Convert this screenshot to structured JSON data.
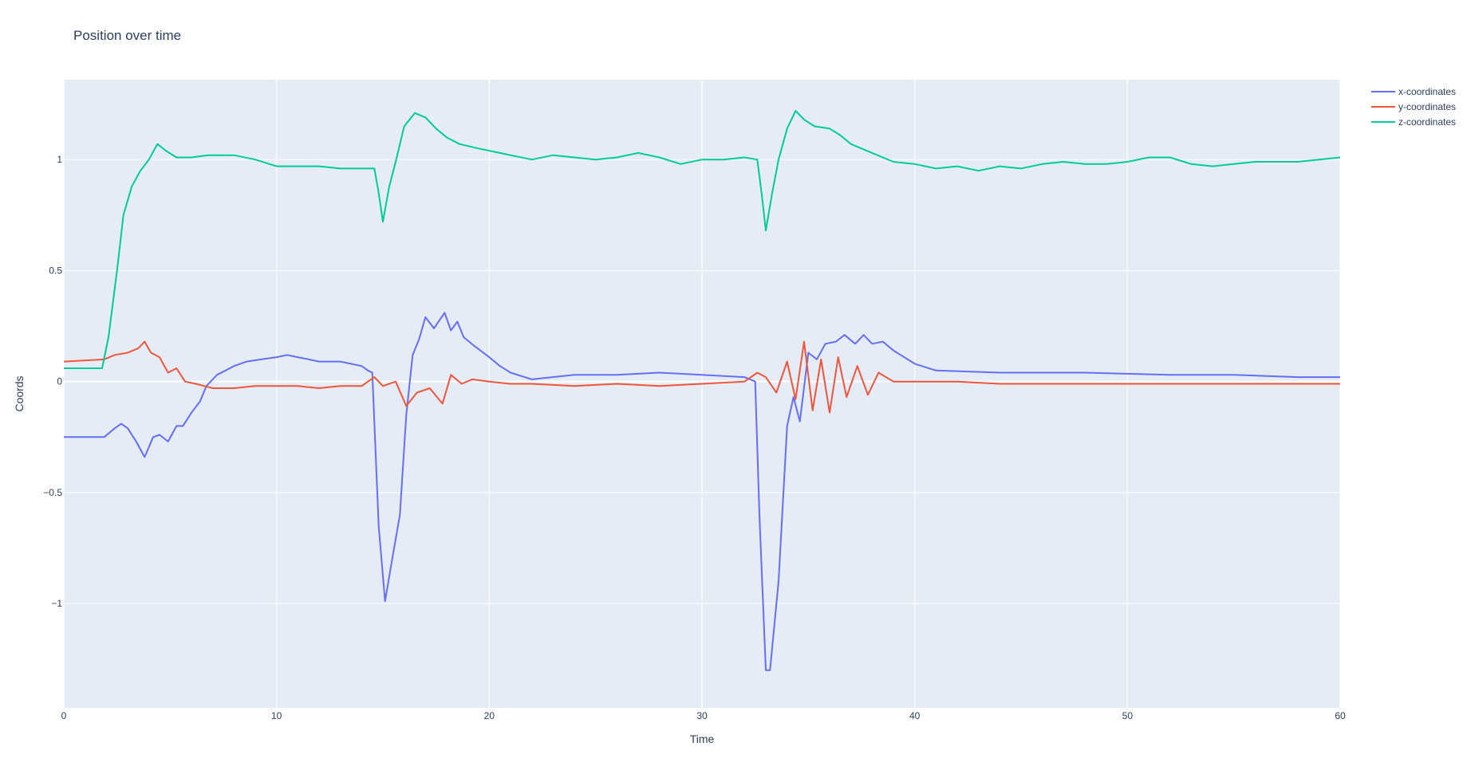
{
  "chart_data": {
    "type": "line",
    "title": "Position over time",
    "xlabel": "Time",
    "ylabel": "Coords",
    "xlim": [
      0,
      60
    ],
    "ylim": [
      -1.47,
      1.36
    ],
    "xticks": [
      0,
      10,
      20,
      30,
      40,
      50,
      60
    ],
    "xtick_labels": [
      "0",
      "10",
      "20",
      "30",
      "40",
      "50",
      "60"
    ],
    "yticks": [
      -1,
      -0.5,
      0,
      0.5,
      1
    ],
    "ytick_labels": [
      "−1",
      "−0.5",
      "0",
      "0.5",
      "1"
    ],
    "grid": true,
    "legend_position": "top-right",
    "plot_bg": "#e5ecf6",
    "series": [
      {
        "name": "x-coordinates",
        "color": "#636efa",
        "points": [
          [
            0,
            -0.25
          ],
          [
            1.9,
            -0.25
          ],
          [
            2.4,
            -0.21
          ],
          [
            2.7,
            -0.19
          ],
          [
            3,
            -0.21
          ],
          [
            3.4,
            -0.27
          ],
          [
            3.8,
            -0.34
          ],
          [
            4.2,
            -0.25
          ],
          [
            4.5,
            -0.24
          ],
          [
            4.9,
            -0.27
          ],
          [
            5.3,
            -0.2
          ],
          [
            5.6,
            -0.2
          ],
          [
            6,
            -0.14
          ],
          [
            6.4,
            -0.09
          ],
          [
            6.7,
            -0.02
          ],
          [
            7.2,
            0.03
          ],
          [
            7.6,
            0.05
          ],
          [
            8,
            0.07
          ],
          [
            8.6,
            0.09
          ],
          [
            9.3,
            0.1
          ],
          [
            10,
            0.11
          ],
          [
            10.5,
            0.12
          ],
          [
            11,
            0.11
          ],
          [
            11.5,
            0.1
          ],
          [
            12,
            0.09
          ],
          [
            13,
            0.09
          ],
          [
            14,
            0.07
          ],
          [
            14.3,
            0.05
          ],
          [
            14.5,
            0.04
          ],
          [
            14.8,
            -0.65
          ],
          [
            15.1,
            -0.99
          ],
          [
            15.4,
            -0.82
          ],
          [
            15.8,
            -0.6
          ],
          [
            16.1,
            -0.15
          ],
          [
            16.4,
            0.12
          ],
          [
            16.7,
            0.19
          ],
          [
            17,
            0.29
          ],
          [
            17.4,
            0.24
          ],
          [
            17.9,
            0.31
          ],
          [
            18.2,
            0.23
          ],
          [
            18.5,
            0.27
          ],
          [
            18.8,
            0.2
          ],
          [
            19.3,
            0.16
          ],
          [
            20,
            0.11
          ],
          [
            20.5,
            0.07
          ],
          [
            21,
            0.04
          ],
          [
            22,
            0.01
          ],
          [
            24,
            0.03
          ],
          [
            26,
            0.03
          ],
          [
            28,
            0.04
          ],
          [
            30,
            0.03
          ],
          [
            32,
            0.02
          ],
          [
            32.5,
            0
          ],
          [
            32.7,
            -0.6
          ],
          [
            33,
            -1.3
          ],
          [
            33.2,
            -1.3
          ],
          [
            33.6,
            -0.9
          ],
          [
            34,
            -0.2
          ],
          [
            34.3,
            -0.07
          ],
          [
            34.6,
            -0.18
          ],
          [
            35,
            0.13
          ],
          [
            35.4,
            0.1
          ],
          [
            35.8,
            0.17
          ],
          [
            36.3,
            0.18
          ],
          [
            36.7,
            0.21
          ],
          [
            37.2,
            0.17
          ],
          [
            37.6,
            0.21
          ],
          [
            38,
            0.17
          ],
          [
            38.5,
            0.18
          ],
          [
            39,
            0.14
          ],
          [
            40,
            0.08
          ],
          [
            41,
            0.05
          ],
          [
            44,
            0.04
          ],
          [
            48,
            0.04
          ],
          [
            52,
            0.03
          ],
          [
            55,
            0.03
          ],
          [
            58,
            0.02
          ],
          [
            60,
            0.02
          ]
        ]
      },
      {
        "name": "y-coordinates",
        "color": "#ef553b",
        "points": [
          [
            0,
            0.09
          ],
          [
            1.9,
            0.1
          ],
          [
            2.4,
            0.12
          ],
          [
            3,
            0.13
          ],
          [
            3.5,
            0.15
          ],
          [
            3.8,
            0.18
          ],
          [
            4.1,
            0.13
          ],
          [
            4.5,
            0.11
          ],
          [
            4.9,
            0.04
          ],
          [
            5.3,
            0.06
          ],
          [
            5.7,
            0
          ],
          [
            6.2,
            -0.01
          ],
          [
            7,
            -0.03
          ],
          [
            8,
            -0.03
          ],
          [
            9,
            -0.02
          ],
          [
            10,
            -0.02
          ],
          [
            11,
            -0.02
          ],
          [
            12,
            -0.03
          ],
          [
            13,
            -0.02
          ],
          [
            14,
            -0.02
          ],
          [
            14.6,
            0.02
          ],
          [
            15,
            -0.02
          ],
          [
            15.6,
            0
          ],
          [
            16.1,
            -0.11
          ],
          [
            16.6,
            -0.05
          ],
          [
            17.2,
            -0.03
          ],
          [
            17.8,
            -0.1
          ],
          [
            18.2,
            0.03
          ],
          [
            18.7,
            -0.01
          ],
          [
            19.2,
            0.01
          ],
          [
            20,
            0
          ],
          [
            21,
            -0.01
          ],
          [
            22,
            -0.01
          ],
          [
            24,
            -0.02
          ],
          [
            26,
            -0.01
          ],
          [
            28,
            -0.02
          ],
          [
            30,
            -0.01
          ],
          [
            32,
            0
          ],
          [
            32.6,
            0.04
          ],
          [
            33,
            0.02
          ],
          [
            33.5,
            -0.05
          ],
          [
            34,
            0.09
          ],
          [
            34.4,
            -0.08
          ],
          [
            34.8,
            0.18
          ],
          [
            35.2,
            -0.13
          ],
          [
            35.6,
            0.1
          ],
          [
            36,
            -0.14
          ],
          [
            36.4,
            0.11
          ],
          [
            36.8,
            -0.07
          ],
          [
            37.3,
            0.07
          ],
          [
            37.8,
            -0.06
          ],
          [
            38.3,
            0.04
          ],
          [
            39,
            0
          ],
          [
            40,
            0
          ],
          [
            42,
            0
          ],
          [
            44,
            -0.01
          ],
          [
            46,
            -0.01
          ],
          [
            48,
            -0.01
          ],
          [
            50,
            -0.01
          ],
          [
            52,
            -0.01
          ],
          [
            54,
            -0.01
          ],
          [
            56,
            -0.01
          ],
          [
            58,
            -0.01
          ],
          [
            60,
            -0.01
          ]
        ]
      },
      {
        "name": "z-coordinates",
        "color": "#00cc96",
        "points": [
          [
            0,
            0.06
          ],
          [
            1.8,
            0.06
          ],
          [
            2.1,
            0.2
          ],
          [
            2.5,
            0.5
          ],
          [
            2.8,
            0.75
          ],
          [
            3.2,
            0.88
          ],
          [
            3.6,
            0.95
          ],
          [
            4,
            1
          ],
          [
            4.4,
            1.07
          ],
          [
            4.8,
            1.04
          ],
          [
            5.3,
            1.01
          ],
          [
            6,
            1.01
          ],
          [
            6.8,
            1.02
          ],
          [
            8,
            1.02
          ],
          [
            9,
            1
          ],
          [
            10,
            0.97
          ],
          [
            12,
            0.97
          ],
          [
            13,
            0.96
          ],
          [
            14,
            0.96
          ],
          [
            14.6,
            0.96
          ],
          [
            14.8,
            0.85
          ],
          [
            15,
            0.72
          ],
          [
            15.3,
            0.88
          ],
          [
            15.6,
            0.99
          ],
          [
            16,
            1.15
          ],
          [
            16.5,
            1.21
          ],
          [
            17,
            1.19
          ],
          [
            17.5,
            1.14
          ],
          [
            18,
            1.1
          ],
          [
            18.6,
            1.07
          ],
          [
            19.5,
            1.05
          ],
          [
            20.5,
            1.03
          ],
          [
            22,
            1
          ],
          [
            23,
            1.02
          ],
          [
            24,
            1.01
          ],
          [
            25,
            1
          ],
          [
            26,
            1.01
          ],
          [
            27,
            1.03
          ],
          [
            28,
            1.01
          ],
          [
            29,
            0.98
          ],
          [
            30,
            1
          ],
          [
            31,
            1
          ],
          [
            32,
            1.01
          ],
          [
            32.6,
            1
          ],
          [
            32.8,
            0.85
          ],
          [
            33,
            0.68
          ],
          [
            33.3,
            0.85
          ],
          [
            33.6,
            1
          ],
          [
            34,
            1.14
          ],
          [
            34.4,
            1.22
          ],
          [
            34.8,
            1.18
          ],
          [
            35.3,
            1.15
          ],
          [
            36,
            1.14
          ],
          [
            36.5,
            1.11
          ],
          [
            37,
            1.07
          ],
          [
            38,
            1.03
          ],
          [
            39,
            0.99
          ],
          [
            40,
            0.98
          ],
          [
            41,
            0.96
          ],
          [
            42,
            0.97
          ],
          [
            43,
            0.95
          ],
          [
            44,
            0.97
          ],
          [
            45,
            0.96
          ],
          [
            46,
            0.98
          ],
          [
            47,
            0.99
          ],
          [
            48,
            0.98
          ],
          [
            49,
            0.98
          ],
          [
            50,
            0.99
          ],
          [
            51,
            1.01
          ],
          [
            52,
            1.01
          ],
          [
            53,
            0.98
          ],
          [
            54,
            0.97
          ],
          [
            55,
            0.98
          ],
          [
            56,
            0.99
          ],
          [
            57,
            0.99
          ],
          [
            58,
            0.99
          ],
          [
            59,
            1
          ],
          [
            60,
            1.01
          ]
        ]
      }
    ]
  }
}
